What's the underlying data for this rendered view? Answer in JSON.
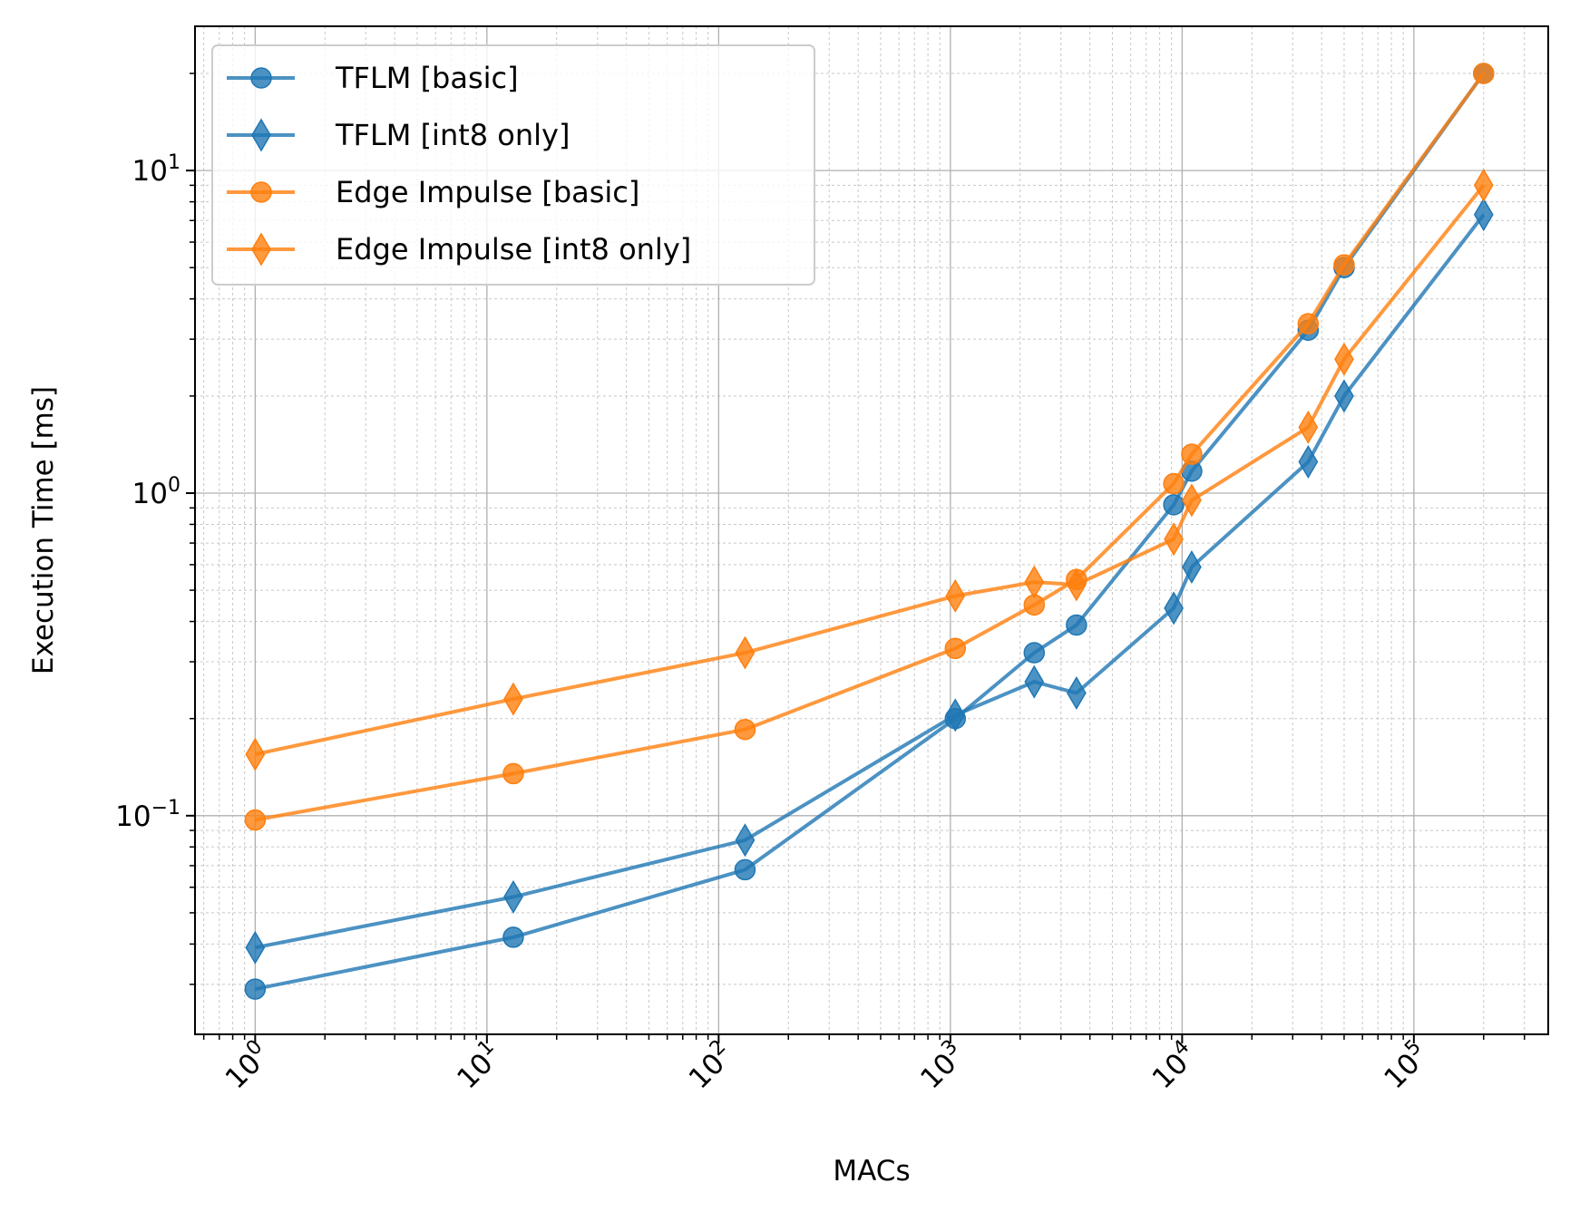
{
  "chart_data": {
    "type": "line",
    "title": "",
    "xlabel": "MACs",
    "ylabel": "Execution Time [ms]",
    "xscale": "log",
    "yscale": "log",
    "xlim": [
      0.55,
      380000
    ],
    "ylim": [
      0.021,
      28
    ],
    "grid": true,
    "legend_position": "top-left",
    "x_ticks": [
      {
        "value": 1,
        "base": "10",
        "exp": "0"
      },
      {
        "value": 10,
        "base": "10",
        "exp": "1"
      },
      {
        "value": 100,
        "base": "10",
        "exp": "2"
      },
      {
        "value": 1000,
        "base": "10",
        "exp": "3"
      },
      {
        "value": 10000,
        "base": "10",
        "exp": "4"
      },
      {
        "value": 100000,
        "base": "10",
        "exp": "5"
      }
    ],
    "y_ticks": [
      {
        "value": 0.1,
        "base": "10",
        "exp": "−1"
      },
      {
        "value": 1,
        "base": "10",
        "exp": "0"
      },
      {
        "value": 10,
        "base": "10",
        "exp": "1"
      }
    ],
    "colors": {
      "tflm": "#1f77b4",
      "edge": "#ff7f0e"
    },
    "series": [
      {
        "name": "TFLM [basic]",
        "color": "#1f77b4",
        "marker": "circle",
        "x": [
          1,
          13,
          130,
          1050,
          2300,
          3500,
          9200,
          11000,
          35000,
          50000,
          200000
        ],
        "y": [
          0.029,
          0.042,
          0.068,
          0.2,
          0.32,
          0.39,
          0.92,
          1.17,
          3.2,
          5.0,
          20.0
        ]
      },
      {
        "name": "TFLM [int8 only]",
        "color": "#1f77b4",
        "marker": "diamond",
        "x": [
          1,
          13,
          130,
          1050,
          2300,
          3500,
          9200,
          11000,
          35000,
          50000,
          200000
        ],
        "y": [
          0.039,
          0.056,
          0.084,
          0.205,
          0.26,
          0.24,
          0.44,
          0.59,
          1.25,
          2.0,
          7.3
        ]
      },
      {
        "name": "Edge Impulse [basic]",
        "color": "#ff7f0e",
        "marker": "circle",
        "x": [
          1,
          13,
          130,
          1050,
          2300,
          3500,
          9200,
          11000,
          35000,
          50000,
          200000
        ],
        "y": [
          0.097,
          0.135,
          0.185,
          0.33,
          0.45,
          0.54,
          1.07,
          1.32,
          3.35,
          5.1,
          20.0
        ]
      },
      {
        "name": "Edge Impulse [int8 only]",
        "color": "#ff7f0e",
        "marker": "diamond",
        "x": [
          1,
          13,
          130,
          1050,
          2300,
          3500,
          9200,
          11000,
          35000,
          50000,
          200000
        ],
        "y": [
          0.155,
          0.23,
          0.32,
          0.48,
          0.53,
          0.52,
          0.72,
          0.95,
          1.6,
          2.6,
          9.0
        ]
      }
    ]
  }
}
